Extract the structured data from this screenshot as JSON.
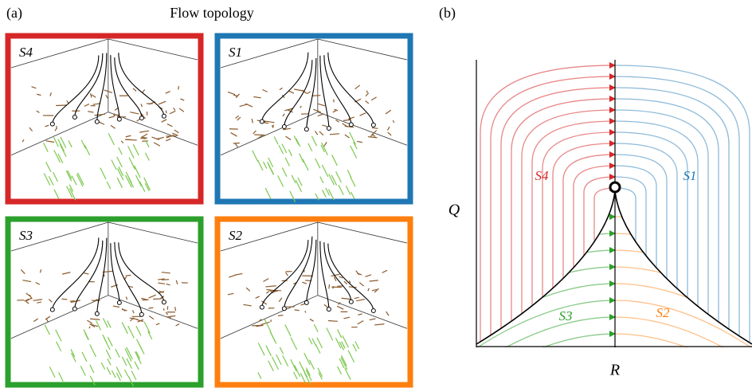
{
  "panel_a": {
    "label": "(a)",
    "title": "Flow topology",
    "boxes": [
      {
        "label": "S4",
        "color": "#d62728"
      },
      {
        "label": "S1",
        "color": "#1f77b4"
      },
      {
        "label": "S3",
        "color": "#2ca02c"
      },
      {
        "label": "S2",
        "color": "#ff7f0e"
      }
    ]
  },
  "panel_b": {
    "label": "(b)",
    "x_label": "R",
    "y_label": "Q",
    "regions": [
      {
        "label": "S4",
        "color": "#d62728"
      },
      {
        "label": "S1",
        "color": "#1f77b4"
      },
      {
        "label": "S3",
        "color": "#2ca02c"
      },
      {
        "label": "S2",
        "color": "#ff7f0e"
      }
    ]
  }
}
